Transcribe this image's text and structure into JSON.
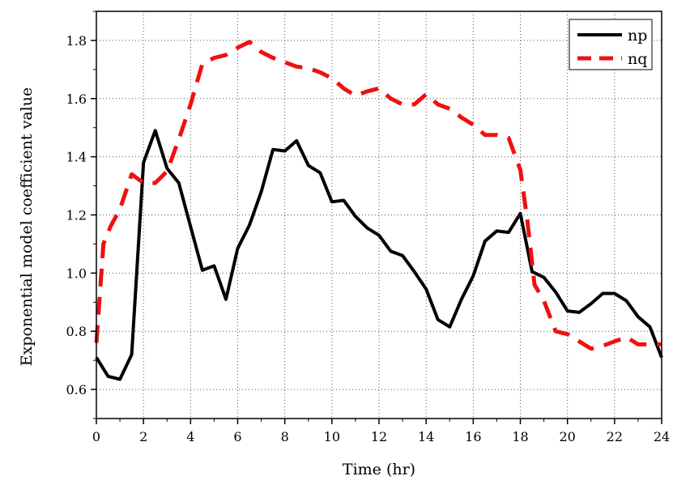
{
  "chart_data": {
    "type": "line",
    "title": "",
    "xlabel": "Time (hr)",
    "ylabel": "Exponential model coefficient value",
    "xlim": [
      0,
      24
    ],
    "ylim": [
      0.5,
      1.9
    ],
    "x_ticks": [
      0,
      2,
      4,
      6,
      8,
      10,
      12,
      14,
      16,
      18,
      20,
      22,
      24
    ],
    "y_ticks": [
      0.6,
      0.8,
      1.0,
      1.2,
      1.4,
      1.6,
      1.8
    ],
    "x_tick_labels": [
      "0",
      "2",
      "4",
      "6",
      "8",
      "10",
      "12",
      "14",
      "16",
      "18",
      "20",
      "22",
      "24"
    ],
    "y_tick_labels": [
      "0.6",
      "0.8",
      "1.0",
      "1.2",
      "1.4",
      "1.6",
      "1.8"
    ],
    "grid": true,
    "legend_position": "top-right",
    "series": [
      {
        "name": "np",
        "color": "#000000",
        "style": "solid",
        "x": [
          0,
          0.5,
          1,
          1.5,
          2,
          2.5,
          3,
          3.5,
          4,
          4.5,
          5,
          5.5,
          6,
          6.5,
          7,
          7.5,
          8,
          8.5,
          9,
          9.5,
          10,
          10.5,
          11,
          11.5,
          12,
          12.5,
          13,
          13.5,
          14,
          14.5,
          15,
          15.5,
          16,
          16.5,
          17,
          17.5,
          18,
          18.5,
          19,
          19.5,
          20,
          20.5,
          21,
          21.5,
          22,
          22.5,
          23,
          23.5,
          24
        ],
        "values": [
          0.71,
          0.645,
          0.635,
          0.72,
          1.38,
          1.49,
          1.36,
          1.31,
          1.16,
          1.01,
          1.025,
          0.91,
          1.085,
          1.165,
          1.28,
          1.425,
          1.42,
          1.455,
          1.37,
          1.345,
          1.245,
          1.25,
          1.195,
          1.155,
          1.13,
          1.075,
          1.06,
          1.005,
          0.945,
          0.84,
          0.815,
          0.91,
          0.99,
          1.11,
          1.145,
          1.14,
          1.205,
          1.005,
          0.985,
          0.935,
          0.87,
          0.865,
          0.895,
          0.93,
          0.93,
          0.905,
          0.85,
          0.815,
          0.71
        ]
      },
      {
        "name": "nq",
        "color": "#ee1111",
        "style": "dashed",
        "x": [
          0,
          0.3,
          0.6,
          1,
          1.5,
          2,
          2.5,
          3,
          3.5,
          4,
          4.5,
          5,
          5.5,
          6,
          6.5,
          7,
          7.5,
          8,
          8.5,
          9,
          9.5,
          10,
          10.5,
          11,
          11.5,
          12,
          12.5,
          13,
          13.5,
          14,
          14.5,
          15,
          15.5,
          16,
          16.5,
          17,
          17.5,
          18,
          18.3,
          18.6,
          19,
          19.5,
          20,
          20.5,
          21,
          21.5,
          22,
          22.5,
          23,
          23.5,
          24
        ],
        "values": [
          0.76,
          1.1,
          1.16,
          1.22,
          1.34,
          1.31,
          1.31,
          1.35,
          1.46,
          1.58,
          1.72,
          1.74,
          1.75,
          1.775,
          1.795,
          1.76,
          1.74,
          1.725,
          1.71,
          1.705,
          1.69,
          1.67,
          1.635,
          1.61,
          1.625,
          1.635,
          1.6,
          1.58,
          1.58,
          1.615,
          1.58,
          1.565,
          1.535,
          1.51,
          1.475,
          1.475,
          1.465,
          1.355,
          1.18,
          0.96,
          0.905,
          0.8,
          0.79,
          0.765,
          0.74,
          0.75,
          0.765,
          0.78,
          0.755,
          0.755,
          0.755
        ]
      }
    ]
  }
}
